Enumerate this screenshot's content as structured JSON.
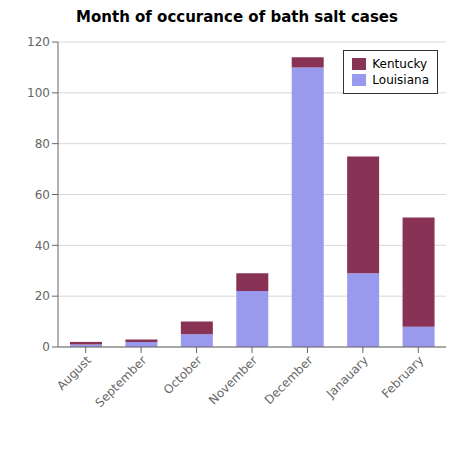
{
  "chart_data": {
    "type": "bar",
    "title": "Month of occurance of bath salt cases",
    "categories": [
      "August",
      "September",
      "October",
      "November",
      "December",
      "Janauary",
      "February"
    ],
    "series": [
      {
        "name": "Louisiana",
        "color": "#9999ee",
        "values": [
          1,
          2,
          5,
          22,
          110,
          29,
          8
        ]
      },
      {
        "name": "Kentucky",
        "color": "#883355",
        "values": [
          1,
          1,
          5,
          7,
          4,
          46,
          43
        ]
      }
    ],
    "stacked": true,
    "ylim": [
      0,
      120
    ],
    "yticks": [
      0,
      20,
      40,
      60,
      80,
      100,
      120
    ],
    "grid": true,
    "legend": "upper right"
  }
}
